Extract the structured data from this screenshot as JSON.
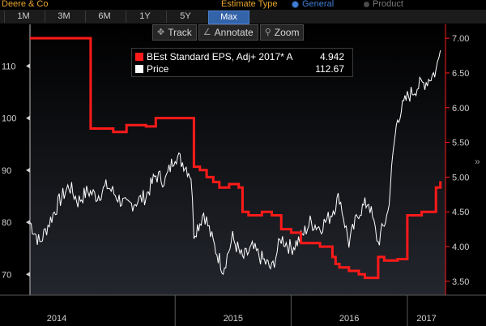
{
  "window": {
    "ticker": "Deere & Co"
  },
  "estimate_type": {
    "label": "Estimate Type",
    "options": [
      {
        "label": "General",
        "selected": true
      },
      {
        "label": "Product",
        "selected": false
      }
    ]
  },
  "range_tabs": [
    {
      "label": "1M",
      "active": false
    },
    {
      "label": "3M",
      "active": false
    },
    {
      "label": "6M",
      "active": false
    },
    {
      "label": "1Y",
      "active": false
    },
    {
      "label": "5Y",
      "active": false
    },
    {
      "label": "Max",
      "active": true
    }
  ],
  "tools": [
    {
      "label": "Track",
      "icon": "crosshair-icon",
      "glyph": "✥"
    },
    {
      "label": "Annotate",
      "icon": "pencil-icon",
      "glyph": "∠"
    },
    {
      "label": "Zoom",
      "icon": "magnifier-icon",
      "glyph": "⚲"
    }
  ],
  "legend": [
    {
      "name": "BEst Standard EPS, Adj+ 2017* A",
      "value": "4.942",
      "color": "#ff1a1a"
    },
    {
      "name": "Price",
      "value": "112.67",
      "color": "#ffffff"
    }
  ],
  "chart_data": {
    "type": "line",
    "grid": false,
    "legend_placement": "top-center",
    "y_left": {
      "ticks": [
        70,
        80,
        90,
        100,
        110
      ],
      "range": [
        66,
        118
      ]
    },
    "y_right": {
      "ticks": [
        "3.50",
        "4.00",
        "4.50",
        "5.00",
        "5.50",
        "6.00",
        "6.50",
        "7.00"
      ],
      "values": [
        3.5,
        4.0,
        4.5,
        5.0,
        5.5,
        6.0,
        6.5,
        7.0
      ],
      "range": [
        3.3,
        7.2
      ]
    },
    "x_labels": [
      "2014",
      "2015",
      "2016",
      "2017"
    ],
    "x_range": [
      "2013-10",
      "2017-05"
    ],
    "series": [
      {
        "name": "BEst Standard EPS, Adj+ 2017* A",
        "axis": "right",
        "color": "#ff1a1a",
        "x": [
          "2013-10-01",
          "2014-04-01",
          "2014-04-10",
          "2014-06-01",
          "2014-06-20",
          "2014-07-20",
          "2014-08-01",
          "2014-09-01",
          "2014-10-01",
          "2014-10-20",
          "2014-11-01",
          "2014-12-01",
          "2015-01-01",
          "2015-02-20",
          "2015-03-01",
          "2015-03-20",
          "2015-04-10",
          "2015-05-01",
          "2015-05-20",
          "2015-06-20",
          "2015-07-20",
          "2015-08-01",
          "2015-08-20",
          "2015-09-10",
          "2015-10-01",
          "2015-10-20",
          "2015-11-01",
          "2015-11-20",
          "2015-12-01",
          "2016-01-01",
          "2016-01-15",
          "2016-02-01",
          "2016-03-01",
          "2016-04-01",
          "2016-04-20",
          "2016-05-10",
          "2016-05-20",
          "2016-06-01",
          "2016-07-01",
          "2016-08-01",
          "2016-08-20",
          "2016-09-10",
          "2016-10-01",
          "2016-10-20",
          "2016-11-20",
          "2016-12-01",
          "2017-01-01",
          "2017-02-01",
          "2017-02-15",
          "2017-03-15",
          "2017-04-01",
          "2017-04-15"
        ],
        "y": [
          7.0,
          7.0,
          5.7,
          5.7,
          5.65,
          5.65,
          5.75,
          5.75,
          5.73,
          5.73,
          5.85,
          5.85,
          5.85,
          5.85,
          5.15,
          5.1,
          5.0,
          4.93,
          4.85,
          4.9,
          4.85,
          4.5,
          4.45,
          4.45,
          4.5,
          4.5,
          4.45,
          4.45,
          4.25,
          4.2,
          4.2,
          4.05,
          4.05,
          4.0,
          4.0,
          3.85,
          3.75,
          3.7,
          3.65,
          3.6,
          3.55,
          3.55,
          3.85,
          3.8,
          3.8,
          3.82,
          4.45,
          4.45,
          4.5,
          4.5,
          4.85,
          4.94
        ]
      },
      {
        "name": "Price",
        "axis": "left",
        "color": "#ffffff",
        "x": [
          "2013-10-01",
          "2013-11-01",
          "2013-12-01",
          "2014-01-01",
          "2014-02-01",
          "2014-03-01",
          "2014-04-01",
          "2014-05-01",
          "2014-06-01",
          "2014-07-01",
          "2014-08-01",
          "2014-09-01",
          "2014-10-01",
          "2014-11-01",
          "2014-12-01",
          "2015-01-01",
          "2015-02-01",
          "2015-02-20",
          "2015-03-01",
          "2015-03-20",
          "2015-04-01",
          "2015-05-01",
          "2015-06-01",
          "2015-07-01",
          "2015-08-01",
          "2015-09-01",
          "2015-10-01",
          "2015-11-01",
          "2015-12-01",
          "2016-01-01",
          "2016-02-01",
          "2016-03-01",
          "2016-04-01",
          "2016-05-01",
          "2016-06-01",
          "2016-07-01",
          "2016-08-01",
          "2016-09-01",
          "2016-10-01",
          "2016-11-01",
          "2016-11-20",
          "2016-12-01",
          "2017-01-01",
          "2017-02-01",
          "2017-03-01",
          "2017-04-01",
          "2017-04-15"
        ],
        "y": [
          80,
          76,
          80,
          84,
          87,
          84,
          86,
          85,
          87,
          85,
          83,
          84,
          85,
          89,
          88,
          93,
          91,
          89,
          78,
          80,
          82,
          76,
          71,
          77,
          73,
          75,
          73,
          71,
          77,
          75,
          77,
          80,
          79,
          81,
          85,
          76,
          82,
          84,
          76,
          82,
          95,
          100,
          104,
          106,
          107,
          109,
          113
        ]
      }
    ]
  }
}
